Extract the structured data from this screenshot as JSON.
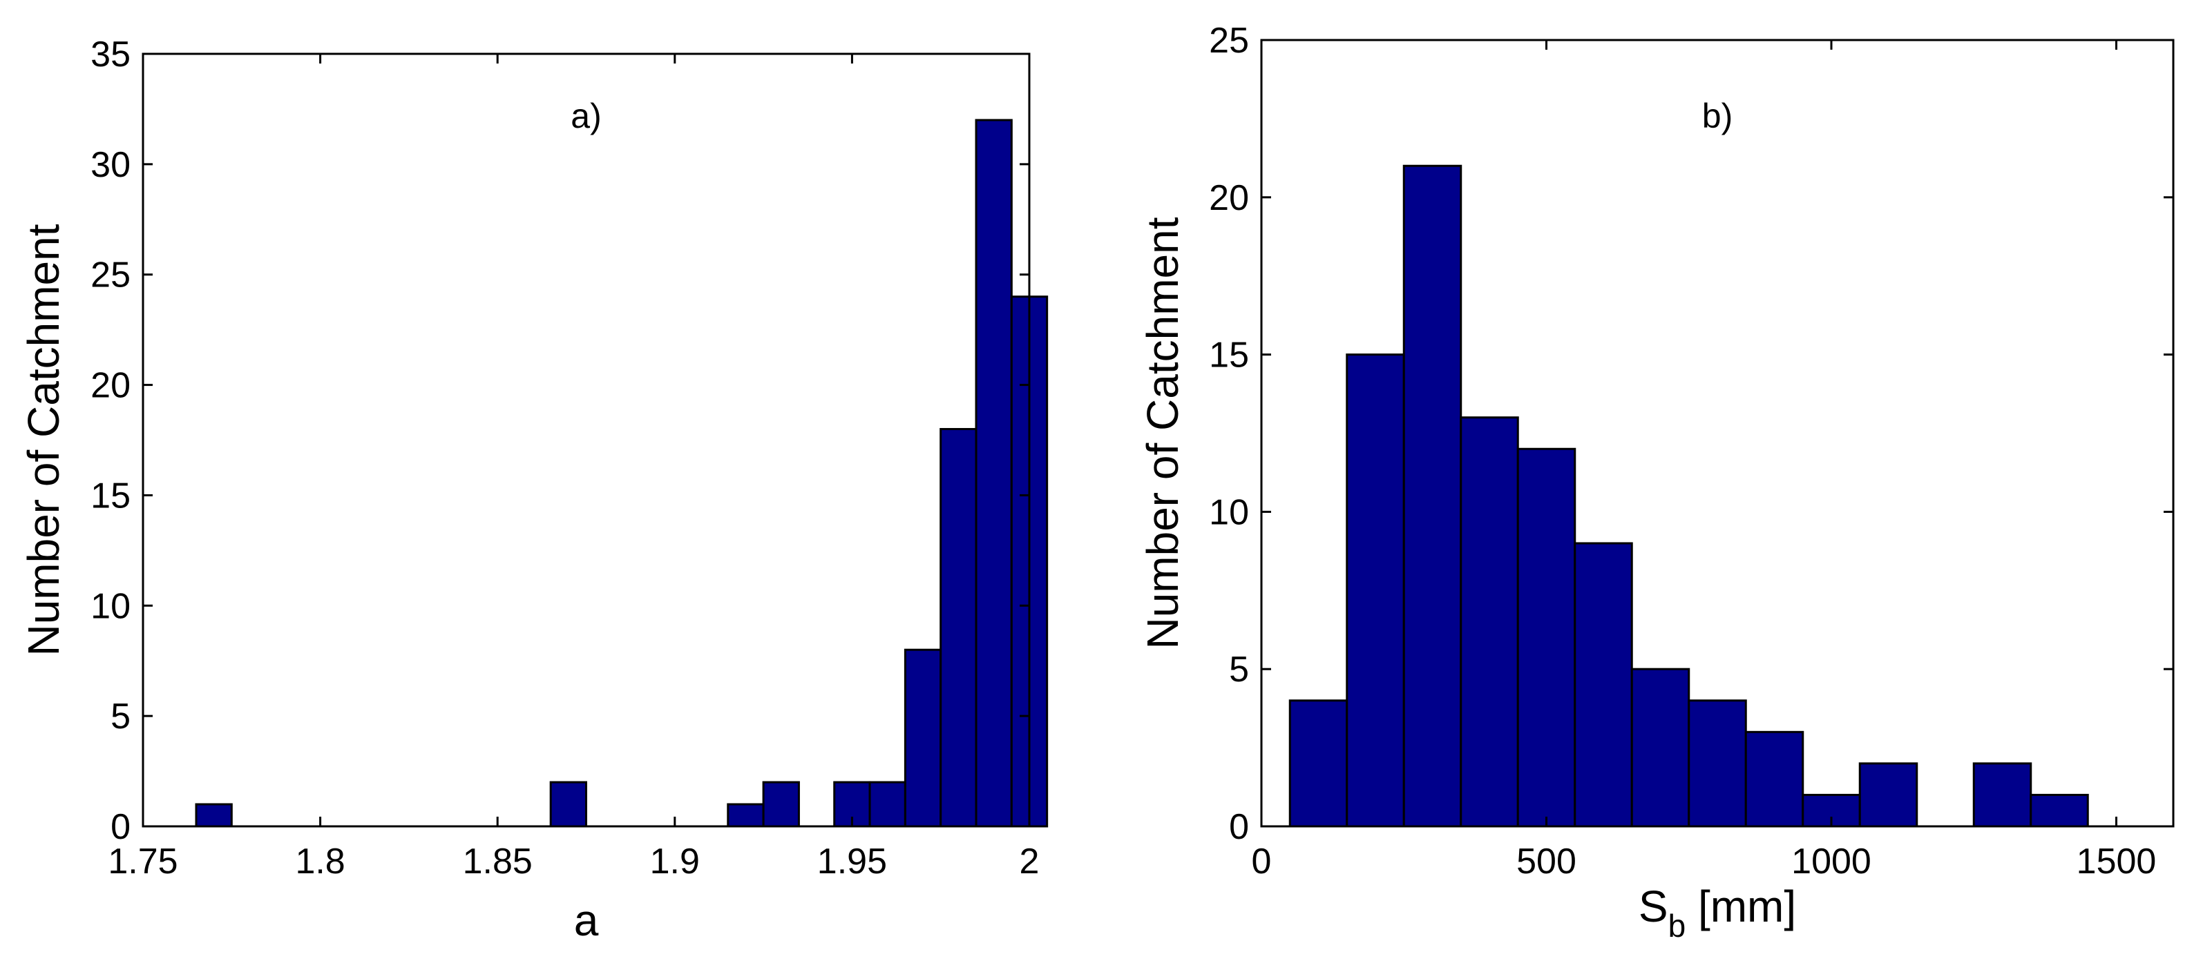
{
  "figure": {
    "bar_color": "#00008b",
    "edge_color": "#000000",
    "background": "#ffffff"
  },
  "chart_data": [
    {
      "id": "a",
      "type": "bar",
      "panel_label": "a)",
      "xlabel": "a",
      "ylabel": "Number of Catchment",
      "xlim": [
        1.75,
        2.0
      ],
      "ylim": [
        0,
        35
      ],
      "xticks": [
        1.75,
        1.8,
        1.85,
        1.9,
        1.95,
        2.0
      ],
      "xtick_labels": [
        "1.75",
        "1.8",
        "1.85",
        "1.9",
        "1.95",
        "2"
      ],
      "yticks": [
        0,
        5,
        10,
        15,
        20,
        25,
        30,
        35
      ],
      "ytick_labels": [
        "0",
        "5",
        "10",
        "15",
        "20",
        "25",
        "30",
        "35"
      ],
      "bin_width": 0.01,
      "bins": [
        {
          "center": 1.77,
          "count": 1
        },
        {
          "center": 1.87,
          "count": 2
        },
        {
          "center": 1.92,
          "count": 1
        },
        {
          "center": 1.93,
          "count": 2
        },
        {
          "center": 1.95,
          "count": 2
        },
        {
          "center": 1.96,
          "count": 2
        },
        {
          "center": 1.97,
          "count": 8
        },
        {
          "center": 1.98,
          "count": 18
        },
        {
          "center": 1.99,
          "count": 32
        },
        {
          "center": 2.0,
          "count": 24
        }
      ],
      "grid": false
    },
    {
      "id": "b",
      "type": "bar",
      "panel_label": "b)",
      "xlabel": "S",
      "xlabel_sub": "b",
      "xlabel_suffix": " [mm]",
      "ylabel": "Number of Catchment",
      "xlim": [
        0,
        1600
      ],
      "ylim": [
        0,
        25
      ],
      "xticks": [
        0,
        500,
        1000,
        1500
      ],
      "xtick_labels": [
        "0",
        "500",
        "1000",
        "1500"
      ],
      "yticks": [
        0,
        5,
        10,
        15,
        20,
        25
      ],
      "ytick_labels": [
        "0",
        "5",
        "10",
        "15",
        "20",
        "25"
      ],
      "bin_width": 100,
      "bins": [
        {
          "center": 100,
          "count": 4
        },
        {
          "center": 200,
          "count": 15
        },
        {
          "center": 300,
          "count": 21
        },
        {
          "center": 400,
          "count": 13
        },
        {
          "center": 500,
          "count": 12
        },
        {
          "center": 600,
          "count": 9
        },
        {
          "center": 700,
          "count": 5
        },
        {
          "center": 800,
          "count": 4
        },
        {
          "center": 900,
          "count": 3
        },
        {
          "center": 1000,
          "count": 1
        },
        {
          "center": 1100,
          "count": 2
        },
        {
          "center": 1300,
          "count": 2
        },
        {
          "center": 1400,
          "count": 1
        }
      ],
      "grid": false
    }
  ]
}
